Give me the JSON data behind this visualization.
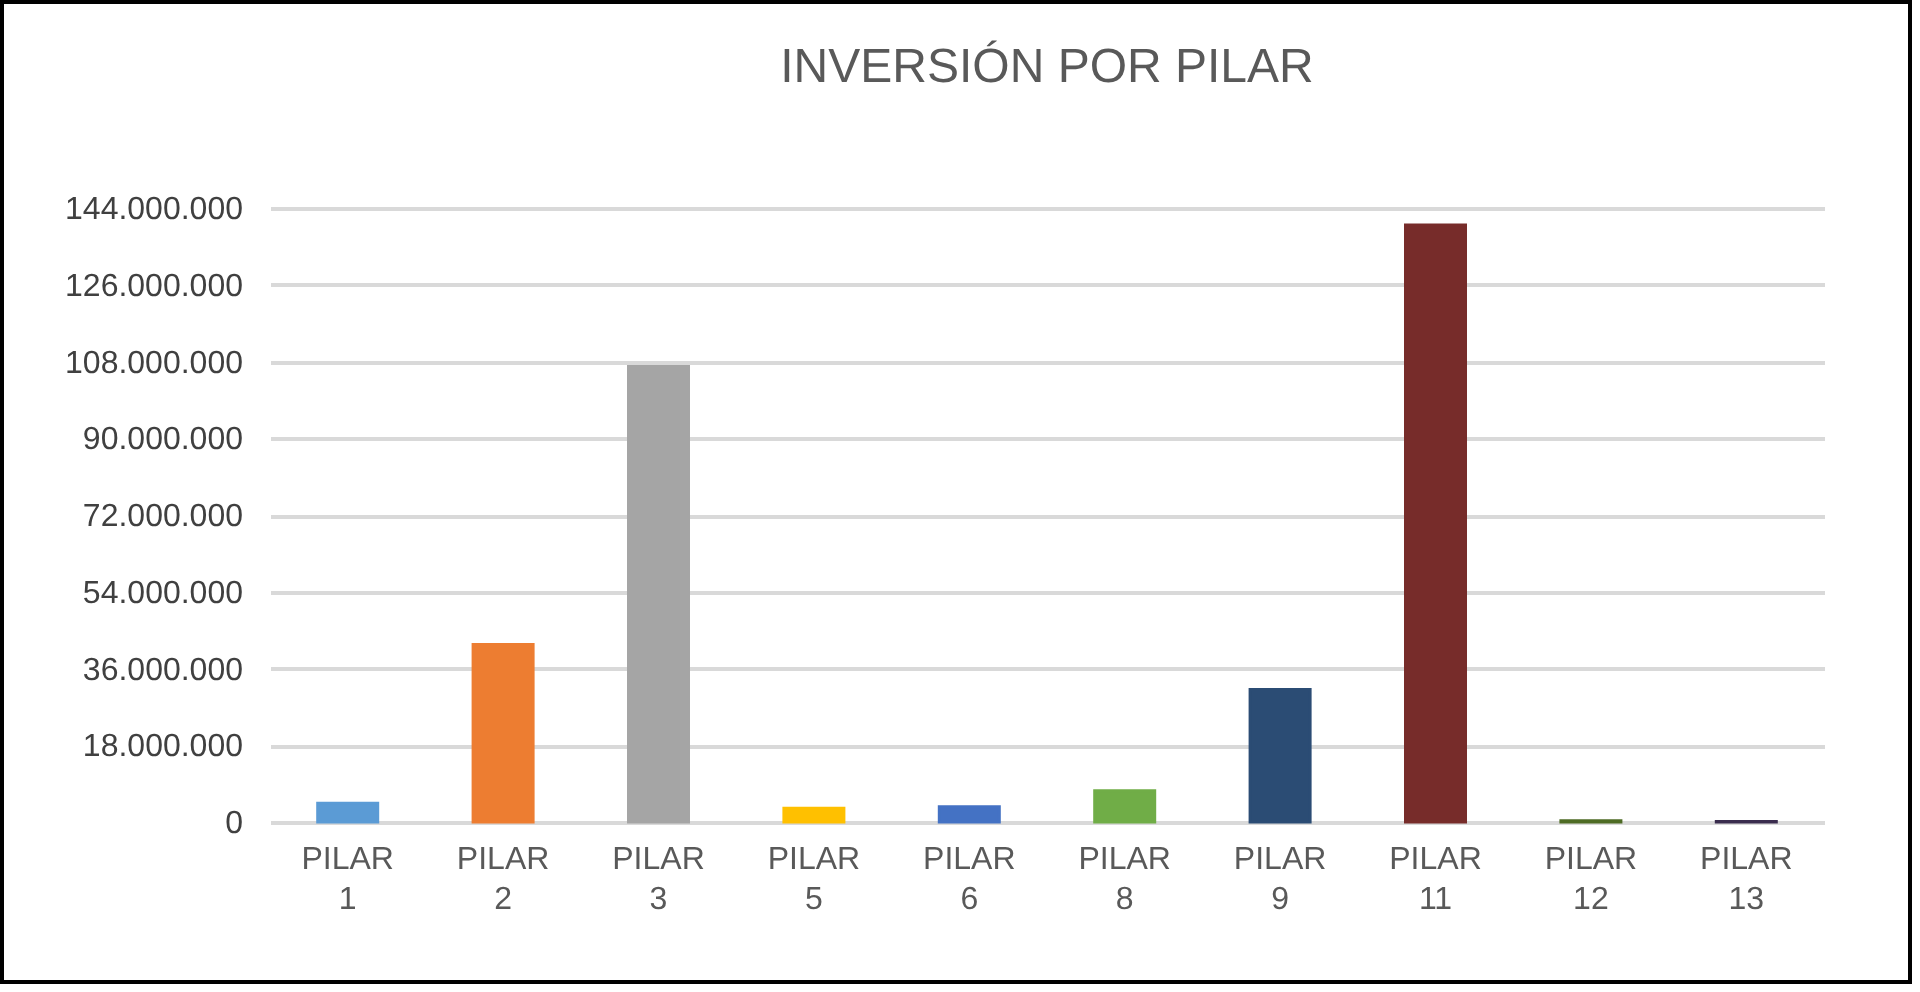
{
  "chart_data": {
    "type": "bar",
    "title": "INVERSIÓN POR PILAR",
    "categories": [
      "PILAR 1",
      "PILAR 2",
      "PILAR 3",
      "PILAR 5",
      "PILAR 6",
      "PILAR 8",
      "PILAR 9",
      "PILAR 11",
      "PILAR 12",
      "PILAR 13"
    ],
    "values": [
      4400000,
      41600000,
      106800000,
      3200000,
      3600000,
      7300000,
      31100000,
      140000000,
      300000,
      100000
    ],
    "colors": [
      "#5b9bd5",
      "#ed7d31",
      "#a5a5a5",
      "#ffc000",
      "#4472c4",
      "#70ad47",
      "#2b4c74",
      "#772c2a",
      "#4e6b24",
      "#3a2c4e"
    ],
    "ylim": [
      0,
      144000000
    ],
    "yticks": [
      {
        "value": 0,
        "label": "0"
      },
      {
        "value": 18000000,
        "label": "18.000.000"
      },
      {
        "value": 36000000,
        "label": "36.000.000"
      },
      {
        "value": 54000000,
        "label": "54.000.000"
      },
      {
        "value": 72000000,
        "label": "72.000.000"
      },
      {
        "value": 90000000,
        "label": "90.000.000"
      },
      {
        "value": 108000000,
        "label": "108.000.000"
      },
      {
        "value": 126000000,
        "label": "126.000.000"
      },
      {
        "value": 144000000,
        "label": "144.000.000"
      }
    ],
    "grid": "y",
    "legend": false
  }
}
